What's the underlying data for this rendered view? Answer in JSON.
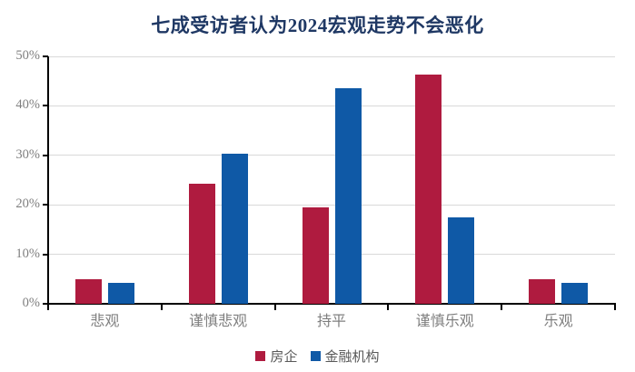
{
  "chart_data": {
    "type": "bar",
    "title": "七成受访者认为2024宏观走势不会恶化",
    "categories": [
      "悲观",
      "谨慎悲观",
      "持平",
      "谨慎乐观",
      "乐观"
    ],
    "series": [
      {
        "name": "房企",
        "color": "#AF1B3F",
        "values": [
          4.9,
          24.3,
          19.5,
          46.4,
          4.9
        ]
      },
      {
        "name": "金融机构",
        "color": "#0F59A6",
        "values": [
          4.3,
          30.4,
          43.5,
          17.4,
          4.3
        ]
      }
    ],
    "xlabel": "",
    "ylabel": "",
    "ylim": [
      0,
      50
    ],
    "ytick_step": 10,
    "ytick_labels": [
      "0%",
      "10%",
      "20%",
      "30%",
      "40%",
      "50%"
    ],
    "grid": true,
    "legend_position": "bottom"
  },
  "colors": {
    "background": "#FFFFFF",
    "title": "#1F3864",
    "axis": "#000000",
    "gridline": "#D9D9D9",
    "tick_label": "#7F7F7F",
    "legend_text": "#595959"
  }
}
